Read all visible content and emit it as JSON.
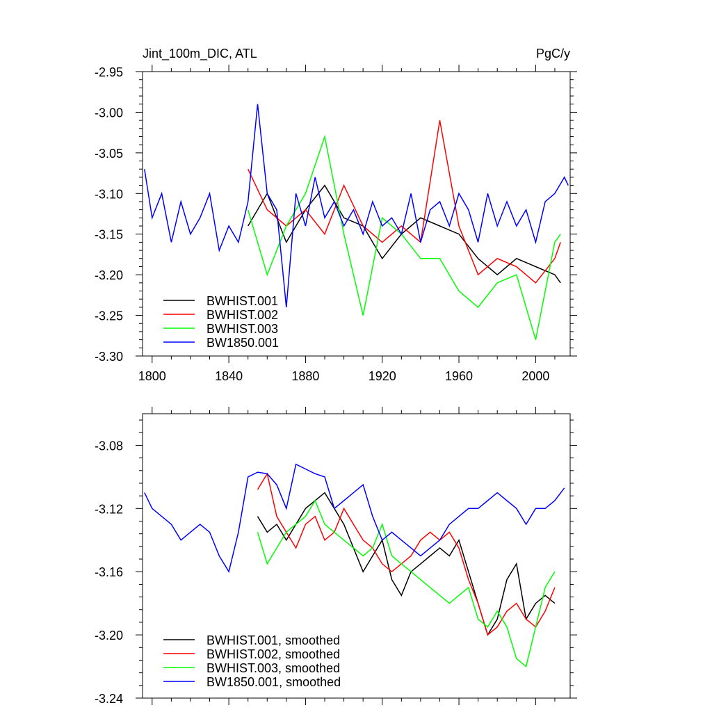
{
  "chart_data": [
    {
      "type": "line",
      "title": "Jint_100m_DIC, ATL",
      "units": "PgC/y",
      "xlabel": "",
      "ylabel": "",
      "xlim": [
        1795,
        2018
      ],
      "ylim": [
        -3.3,
        -2.95
      ],
      "xticks": [
        1800,
        1840,
        1880,
        1920,
        1960,
        2000
      ],
      "xtick_labels": [
        "1800",
        "1840",
        "1880",
        "1920",
        "1960",
        "2000"
      ],
      "yticks": [
        -3.3,
        -3.25,
        -3.2,
        -3.15,
        -3.1,
        -3.05,
        -3.0,
        -2.95
      ],
      "ytick_labels": [
        "-3.30",
        "-3.25",
        "-3.20",
        "-3.15",
        "-3.10",
        "-3.05",
        "-3.00",
        "-2.95"
      ],
      "legend_position": "bottom-left",
      "series": [
        {
          "name": "BWHIST.001",
          "color": "#000000",
          "x": [
            1850,
            1860,
            1870,
            1880,
            1890,
            1900,
            1910,
            1920,
            1930,
            1940,
            1950,
            1960,
            1970,
            1980,
            1990,
            2000,
            2010,
            2013
          ],
          "values": [
            -3.14,
            -3.1,
            -3.16,
            -3.12,
            -3.09,
            -3.13,
            -3.14,
            -3.18,
            -3.15,
            -3.13,
            -3.14,
            -3.15,
            -3.18,
            -3.2,
            -3.18,
            -3.19,
            -3.2,
            -3.21
          ]
        },
        {
          "name": "BWHIST.002",
          "color": "#ff0000",
          "x": [
            1850,
            1860,
            1870,
            1880,
            1890,
            1900,
            1910,
            1920,
            1930,
            1940,
            1950,
            1960,
            1970,
            1980,
            1990,
            2000,
            2010,
            2013
          ],
          "values": [
            -3.07,
            -3.12,
            -3.14,
            -3.12,
            -3.15,
            -3.09,
            -3.14,
            -3.16,
            -3.14,
            -3.16,
            -3.01,
            -3.14,
            -3.2,
            -3.18,
            -3.19,
            -3.21,
            -3.18,
            -3.16
          ]
        },
        {
          "name": "BWHIST.003",
          "color": "#00ff00",
          "x": [
            1850,
            1860,
            1870,
            1880,
            1890,
            1900,
            1910,
            1920,
            1930,
            1940,
            1950,
            1960,
            1970,
            1980,
            1990,
            2000,
            2010,
            2013
          ],
          "values": [
            -3.12,
            -3.2,
            -3.14,
            -3.1,
            -3.03,
            -3.15,
            -3.25,
            -3.13,
            -3.15,
            -3.18,
            -3.18,
            -3.22,
            -3.24,
            -3.21,
            -3.2,
            -3.28,
            -3.16,
            -3.15
          ]
        },
        {
          "name": "BW1850.001",
          "color": "#0000ff",
          "x": [
            1796,
            1800,
            1805,
            1810,
            1815,
            1820,
            1825,
            1830,
            1835,
            1840,
            1845,
            1850,
            1855,
            1860,
            1865,
            1870,
            1875,
            1880,
            1885,
            1890,
            1895,
            1900,
            1905,
            1910,
            1915,
            1920,
            1925,
            1930,
            1935,
            1940,
            1945,
            1950,
            1955,
            1960,
            1965,
            1970,
            1975,
            1980,
            1985,
            1990,
            1995,
            2000,
            2005,
            2010,
            2015,
            2017
          ],
          "values": [
            -3.07,
            -3.13,
            -3.1,
            -3.16,
            -3.11,
            -3.15,
            -3.13,
            -3.1,
            -3.17,
            -3.14,
            -3.16,
            -3.11,
            -2.99,
            -3.1,
            -3.12,
            -3.24,
            -3.1,
            -3.14,
            -3.08,
            -3.13,
            -3.11,
            -3.14,
            -3.12,
            -3.15,
            -3.11,
            -3.14,
            -3.13,
            -3.15,
            -3.1,
            -3.16,
            -3.12,
            -3.11,
            -3.14,
            -3.1,
            -3.12,
            -3.16,
            -3.1,
            -3.14,
            -3.11,
            -3.14,
            -3.12,
            -3.16,
            -3.11,
            -3.1,
            -3.08,
            -3.09
          ]
        }
      ]
    },
    {
      "type": "line",
      "title": "",
      "xlabel": "",
      "ylabel": "",
      "xlim": [
        1795,
        2018
      ],
      "ylim": [
        -3.24,
        -3.06
      ],
      "xticks": [
        1800,
        1840,
        1880,
        1920,
        1960,
        2000
      ],
      "yticks": [
        -3.24,
        -3.2,
        -3.16,
        -3.12,
        -3.08
      ],
      "ytick_labels": [
        "-3.24",
        "-3.20",
        "-3.16",
        "-3.12",
        "-3.08"
      ],
      "legend_position": "bottom-left",
      "series": [
        {
          "name": "BWHIST.001, smoothed",
          "color": "#000000",
          "x": [
            1855,
            1860,
            1865,
            1870,
            1875,
            1880,
            1885,
            1890,
            1895,
            1900,
            1905,
            1910,
            1915,
            1920,
            1925,
            1930,
            1935,
            1940,
            1945,
            1950,
            1955,
            1960,
            1965,
            1970,
            1975,
            1980,
            1985,
            1990,
            1995,
            2000,
            2005,
            2010
          ],
          "values": [
            -3.125,
            -3.135,
            -3.13,
            -3.14,
            -3.13,
            -3.12,
            -3.115,
            -3.11,
            -3.12,
            -3.13,
            -3.145,
            -3.16,
            -3.15,
            -3.14,
            -3.165,
            -3.175,
            -3.16,
            -3.155,
            -3.15,
            -3.145,
            -3.15,
            -3.14,
            -3.16,
            -3.18,
            -3.2,
            -3.19,
            -3.165,
            -3.155,
            -3.19,
            -3.18,
            -3.175,
            -3.18
          ]
        },
        {
          "name": "BWHIST.002, smoothed",
          "color": "#ff0000",
          "x": [
            1855,
            1860,
            1865,
            1870,
            1875,
            1880,
            1885,
            1890,
            1895,
            1900,
            1905,
            1910,
            1915,
            1920,
            1925,
            1930,
            1935,
            1940,
            1945,
            1950,
            1955,
            1960,
            1965,
            1970,
            1975,
            1980,
            1985,
            1990,
            1995,
            2000,
            2005,
            2010
          ],
          "values": [
            -3.108,
            -3.098,
            -3.125,
            -3.135,
            -3.145,
            -3.13,
            -3.125,
            -3.14,
            -3.135,
            -3.12,
            -3.13,
            -3.14,
            -3.145,
            -3.155,
            -3.16,
            -3.155,
            -3.15,
            -3.14,
            -3.135,
            -3.14,
            -3.135,
            -3.145,
            -3.165,
            -3.18,
            -3.2,
            -3.195,
            -3.185,
            -3.18,
            -3.19,
            -3.195,
            -3.185,
            -3.17
          ]
        },
        {
          "name": "BWHIST.003, smoothed",
          "color": "#00ff00",
          "x": [
            1855,
            1860,
            1865,
            1870,
            1875,
            1880,
            1885,
            1890,
            1895,
            1900,
            1905,
            1910,
            1915,
            1920,
            1925,
            1930,
            1935,
            1940,
            1945,
            1950,
            1955,
            1960,
            1965,
            1970,
            1975,
            1980,
            1985,
            1990,
            1995,
            2000,
            2005,
            2010
          ],
          "values": [
            -3.135,
            -3.155,
            -3.145,
            -3.135,
            -3.13,
            -3.125,
            -3.115,
            -3.13,
            -3.135,
            -3.14,
            -3.145,
            -3.15,
            -3.145,
            -3.13,
            -3.15,
            -3.155,
            -3.16,
            -3.165,
            -3.17,
            -3.175,
            -3.18,
            -3.175,
            -3.17,
            -3.19,
            -3.195,
            -3.185,
            -3.195,
            -3.215,
            -3.22,
            -3.195,
            -3.17,
            -3.16
          ]
        },
        {
          "name": "BW1850.001, smoothed",
          "color": "#0000ff",
          "x": [
            1796,
            1800,
            1805,
            1810,
            1815,
            1820,
            1825,
            1830,
            1835,
            1840,
            1845,
            1850,
            1855,
            1860,
            1865,
            1870,
            1875,
            1880,
            1885,
            1890,
            1895,
            1900,
            1905,
            1910,
            1915,
            1920,
            1925,
            1930,
            1935,
            1940,
            1945,
            1950,
            1955,
            1960,
            1965,
            1970,
            1975,
            1980,
            1985,
            1990,
            1995,
            2000,
            2005,
            2010,
            2015
          ],
          "values": [
            -3.11,
            -3.12,
            -3.125,
            -3.13,
            -3.14,
            -3.135,
            -3.13,
            -3.135,
            -3.15,
            -3.16,
            -3.135,
            -3.1,
            -3.097,
            -3.098,
            -3.105,
            -3.12,
            -3.092,
            -3.095,
            -3.098,
            -3.1,
            -3.12,
            -3.115,
            -3.11,
            -3.105,
            -3.125,
            -3.14,
            -3.135,
            -3.14,
            -3.145,
            -3.15,
            -3.145,
            -3.14,
            -3.13,
            -3.125,
            -3.12,
            -3.12,
            -3.115,
            -3.11,
            -3.115,
            -3.12,
            -3.13,
            -3.12,
            -3.12,
            -3.115,
            -3.107
          ]
        }
      ]
    }
  ]
}
